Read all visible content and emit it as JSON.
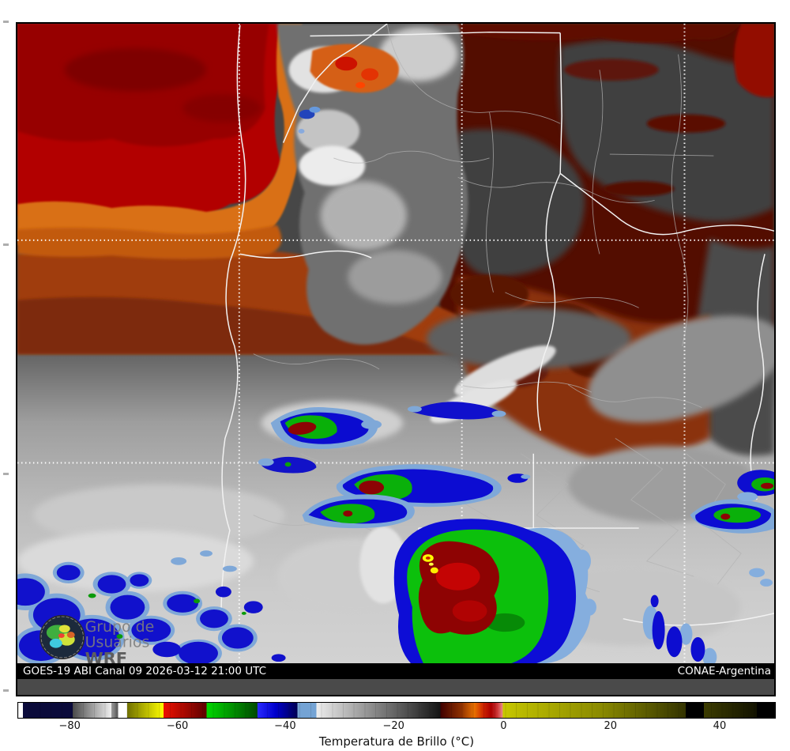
{
  "map": {
    "info_bar": {
      "left": "GOES-19 ABI Canal 09 2026-03-12 21:00 UTC",
      "right": "CONAE-Argentina",
      "bg": "#000000",
      "fg": "#ffffff"
    },
    "logo": {
      "line1": "Grupo de",
      "line2": "Usuarios",
      "line3": "WRF"
    }
  },
  "colorbar": {
    "title": "Temperatura de Brillo (°C)",
    "ticks": [
      {
        "label": "−80",
        "percent": 6.9
      },
      {
        "label": "−60",
        "percent": 21.1
      },
      {
        "label": "−40",
        "percent": 35.3
      },
      {
        "label": "−20",
        "percent": 49.6
      },
      {
        "label": "0",
        "percent": 64.1
      },
      {
        "label": "20",
        "percent": 78.2
      },
      {
        "label": "40",
        "percent": 92.6
      }
    ],
    "stops": [
      [
        0,
        "#ffffff"
      ],
      [
        0.62,
        "#ffffff"
      ],
      [
        0.63,
        "#0b0b3b"
      ],
      [
        7.2,
        "#0b0b3b"
      ],
      [
        7.21,
        "#4a4a4a"
      ],
      [
        12.3,
        "#eeeeee"
      ],
      [
        12.31,
        "#9a9a9a"
      ],
      [
        13.2,
        "#5a5a5a"
      ],
      [
        13.21,
        "#ffffff"
      ],
      [
        14.4,
        "#ffffff"
      ],
      [
        14.41,
        "#6f6f00"
      ],
      [
        19.2,
        "#ffff00"
      ],
      [
        19.21,
        "#ee1100"
      ],
      [
        24.9,
        "#5d0000"
      ],
      [
        24.91,
        "#00d800"
      ],
      [
        31.6,
        "#004a00"
      ],
      [
        31.61,
        "#2a2aff"
      ],
      [
        34,
        "#0000cc"
      ],
      [
        36.9,
        "#000052"
      ],
      [
        36.91,
        "#74a3d4"
      ],
      [
        39.4,
        "#74a3d4"
      ],
      [
        39.41,
        "#ededed"
      ],
      [
        55.8,
        "#141414"
      ],
      [
        55.81,
        "#400000"
      ],
      [
        58.5,
        "#8c2f00"
      ],
      [
        60.3,
        "#e87000"
      ],
      [
        61.5,
        "#cc2200"
      ],
      [
        62.5,
        "#aa0000"
      ],
      [
        63.3,
        "#cc3333"
      ],
      [
        64,
        "#e88888"
      ],
      [
        64.05,
        "#c8c800"
      ],
      [
        66,
        "#bcbc00"
      ],
      [
        77,
        "#8a8a00"
      ],
      [
        88.2,
        "#333300"
      ],
      [
        88.21,
        "#000000"
      ],
      [
        90.6,
        "#000000"
      ],
      [
        90.61,
        "#3c3c00"
      ],
      [
        97.6,
        "#121200"
      ],
      [
        97.61,
        "#000000"
      ],
      [
        100,
        "#000000"
      ]
    ]
  }
}
